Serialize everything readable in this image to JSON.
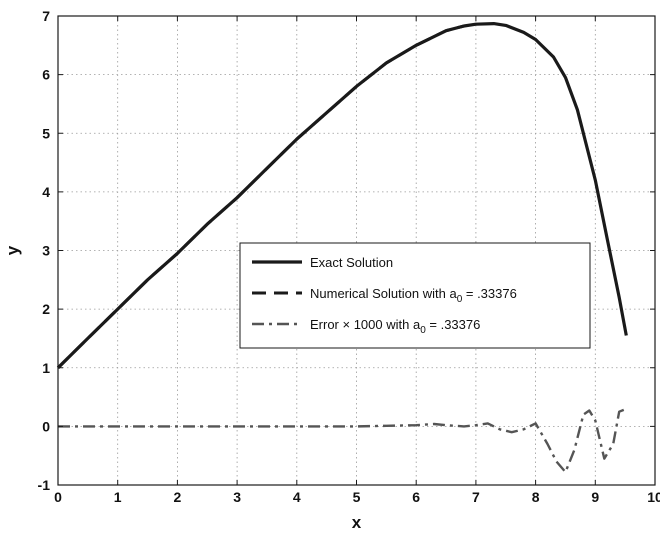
{
  "chart_data": {
    "type": "line",
    "xlabel": "x",
    "ylabel": "y",
    "xlim": [
      0,
      10
    ],
    "ylim": [
      -1,
      7
    ],
    "x_ticks": [
      0,
      1,
      2,
      3,
      4,
      5,
      6,
      7,
      8,
      9,
      10
    ],
    "y_ticks": [
      -1,
      0,
      1,
      2,
      3,
      4,
      5,
      6,
      7
    ],
    "grid": true,
    "grid_style": "dotted",
    "legend_position": "center-right",
    "colors": {
      "exact": "#1a1a1a",
      "numerical": "#1a1a1a",
      "error": "#555555",
      "grid": "#9a9a9a"
    },
    "series": [
      {
        "name": "Exact Solution",
        "style": "solid",
        "x": [
          0.0,
          0.5,
          1.0,
          1.5,
          2.0,
          2.5,
          3.0,
          3.5,
          4.0,
          4.5,
          5.0,
          5.5,
          6.0,
          6.5,
          6.8,
          7.0,
          7.3,
          7.5,
          7.8,
          8.0,
          8.3,
          8.5,
          8.7,
          9.0,
          9.2,
          9.4,
          9.52
        ],
        "values": [
          1.0,
          1.5,
          2.0,
          2.5,
          2.95,
          3.45,
          3.9,
          4.4,
          4.9,
          5.35,
          5.8,
          6.2,
          6.5,
          6.75,
          6.83,
          6.86,
          6.87,
          6.84,
          6.72,
          6.6,
          6.3,
          5.95,
          5.4,
          4.2,
          3.2,
          2.2,
          1.55
        ]
      },
      {
        "name": "Numerical Solution with a",
        "name_subscript": "0",
        "name_suffix": " = .33376",
        "style": "dashed",
        "x": [
          0.0,
          0.5,
          1.0,
          1.5,
          2.0,
          2.5,
          3.0,
          3.5,
          4.0,
          4.5,
          5.0,
          5.5,
          6.0,
          6.5,
          6.8
        ],
        "values": [
          1.0,
          1.5,
          2.0,
          2.5,
          2.95,
          3.45,
          3.9,
          4.4,
          4.9,
          5.35,
          5.8,
          6.2,
          6.5,
          6.75,
          6.83
        ]
      },
      {
        "name": "Error × 1000 with a",
        "name_subscript": "0",
        "name_suffix": " = .33376",
        "style": "dashdot",
        "x": [
          0.0,
          1.0,
          2.0,
          3.0,
          4.0,
          5.0,
          5.5,
          6.0,
          6.3,
          6.5,
          6.8,
          7.0,
          7.2,
          7.4,
          7.6,
          7.8,
          8.0,
          8.2,
          8.35,
          8.5,
          8.65,
          8.8,
          8.9,
          9.0,
          9.15,
          9.3,
          9.4,
          9.52
        ],
        "values": [
          0.0,
          0.0,
          0.0,
          0.0,
          0.0,
          0.0,
          0.01,
          0.02,
          0.04,
          0.02,
          0.0,
          0.02,
          0.05,
          -0.05,
          -0.1,
          -0.05,
          0.05,
          -0.3,
          -0.6,
          -0.78,
          -0.4,
          0.2,
          0.27,
          0.1,
          -0.55,
          -0.3,
          0.25,
          0.3
        ]
      }
    ]
  }
}
